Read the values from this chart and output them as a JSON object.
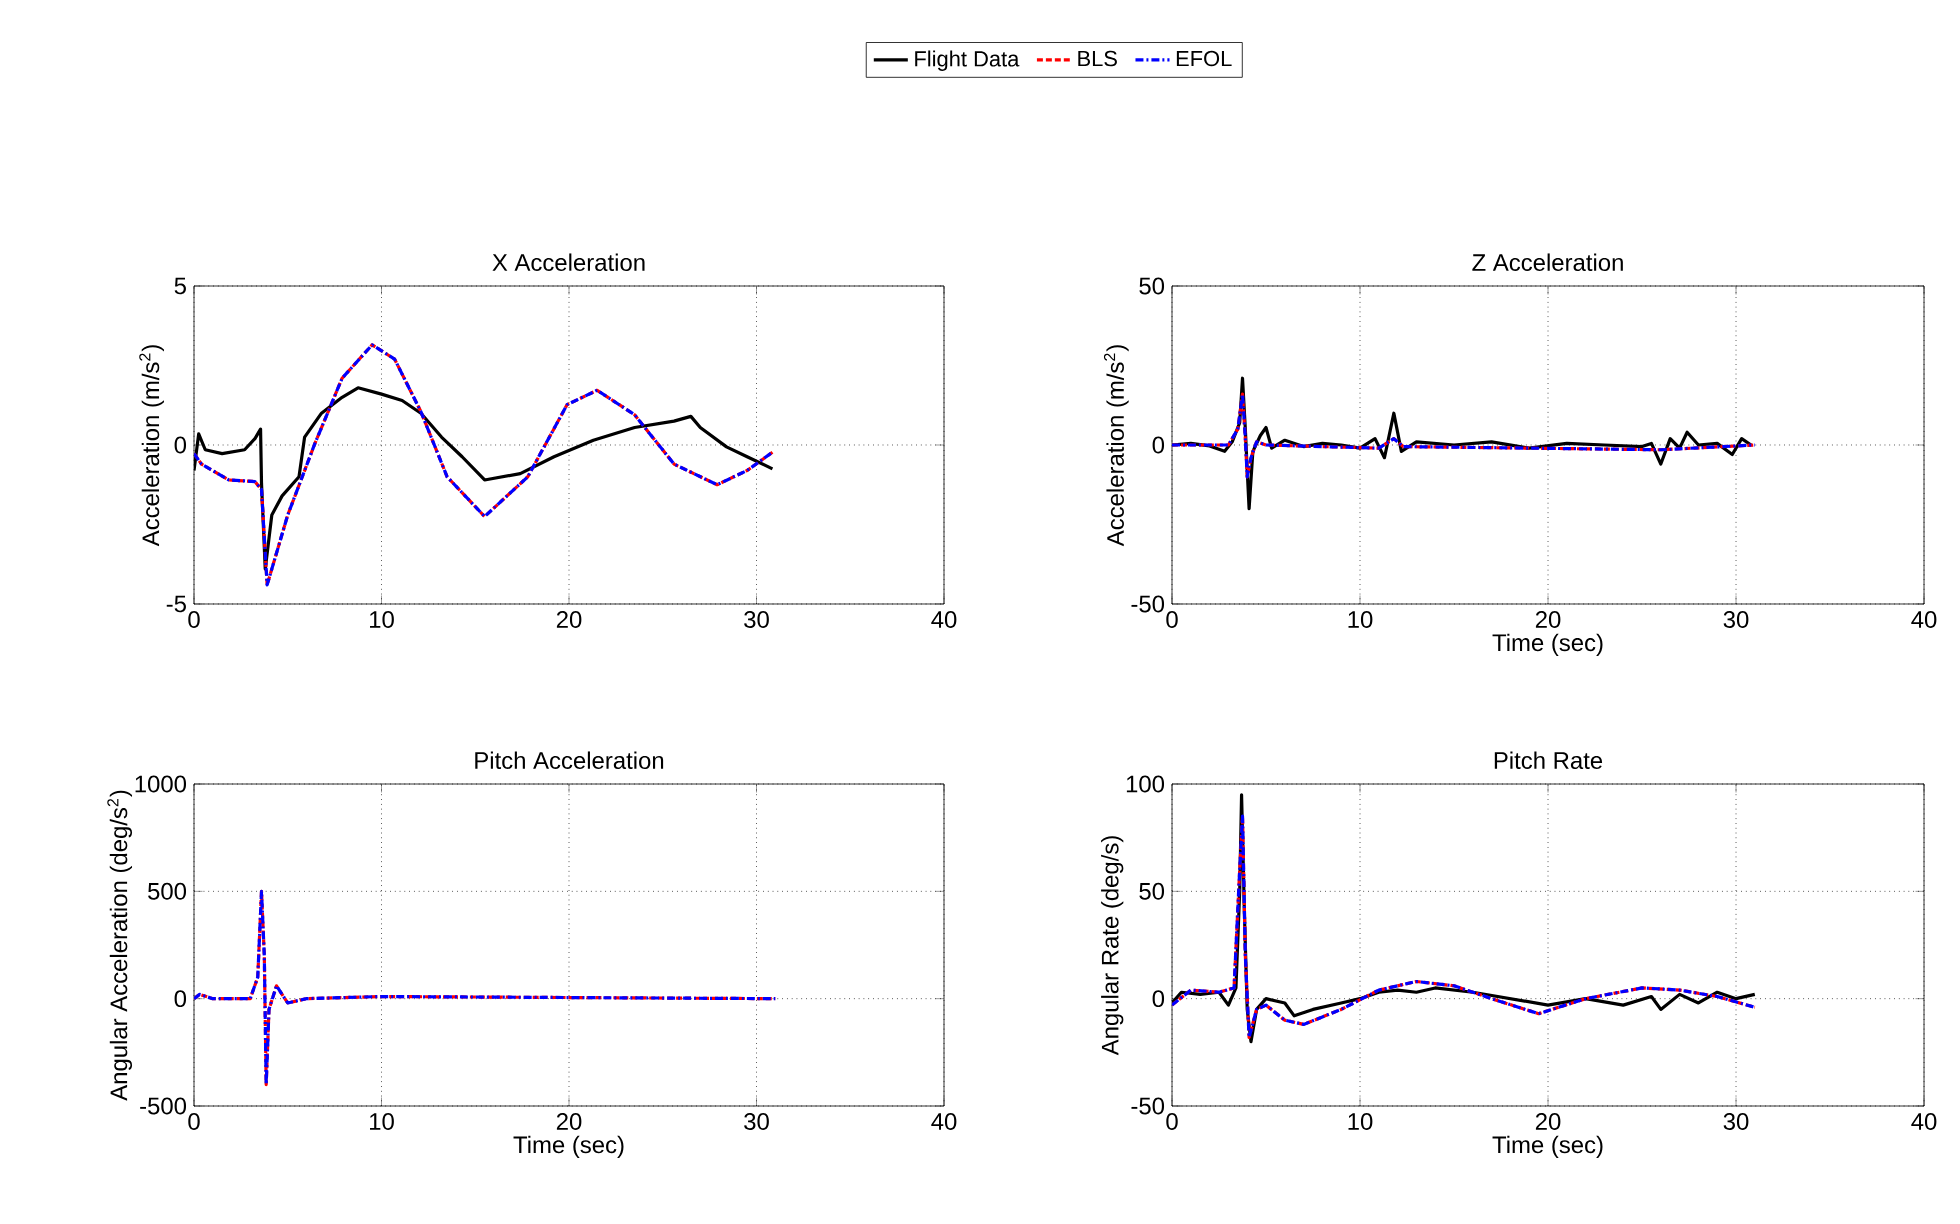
{
  "chart_data": [
    {
      "type": "line",
      "title": "X Acceleration",
      "ylabel": "Acceleration (m/s$^{2}$)",
      "xlim": [
        0,
        40
      ],
      "ylim": [
        -5,
        5
      ],
      "xticks": [
        0,
        10,
        20,
        30,
        40
      ],
      "yticks": [
        -5,
        0,
        5
      ],
      "grid": true,
      "legend": "top",
      "series": [
        {
          "name": "Flight Data",
          "color": "#000000",
          "line_style": "solid",
          "x": [
            0,
            0.25,
            0.6,
            1.5,
            2.7,
            3.25,
            3.55,
            3.6,
            3.8,
            4.15,
            4.7,
            5.6,
            5.9,
            6.8,
            7.9,
            8.75,
            10,
            11.1,
            12.1,
            13.2,
            14.3,
            15.5,
            17.4,
            19.2,
            21.3,
            23.5,
            25.6,
            26.5,
            27,
            28.4,
            29.5,
            30.85
          ],
          "values": [
            -0.8,
            0.35,
            -0.15,
            -0.27,
            -0.15,
            0.2,
            0.5,
            -1.2,
            -3.9,
            -2.2,
            -1.6,
            -1.0,
            0.25,
            1.0,
            1.5,
            1.8,
            1.6,
            1.4,
            1.0,
            0.25,
            -0.37,
            -1.1,
            -0.9,
            -0.37,
            0.15,
            0.55,
            0.75,
            0.9,
            0.55,
            -0.06,
            -0.37,
            -0.75
          ]
        },
        {
          "name": "BLS",
          "color": "#ff0000",
          "line_style": "dashed",
          "x": [
            0,
            0.4,
            1.85,
            3.25,
            3.6,
            3.9,
            5.0,
            6.45,
            7.9,
            9.5,
            10.7,
            12.1,
            13.5,
            15.5,
            17.8,
            19.9,
            21.5,
            23.5,
            25.6,
            27.9,
            29.5,
            30.85
          ],
          "values": [
            -0.27,
            -0.6,
            -1.1,
            -1.15,
            -1.4,
            -4.4,
            -2.2,
            0.05,
            2.1,
            3.15,
            2.7,
            1.05,
            -1.0,
            -2.25,
            -1.0,
            1.27,
            1.72,
            0.95,
            -0.6,
            -1.25,
            -0.8,
            -0.23
          ]
        },
        {
          "name": "EFOL",
          "color": "#0000ff",
          "line_style": "dashdot",
          "x": [
            0,
            0.4,
            1.85,
            3.25,
            3.6,
            3.9,
            5.0,
            6.45,
            7.9,
            9.5,
            10.7,
            12.1,
            13.5,
            15.5,
            17.8,
            19.9,
            21.5,
            23.5,
            25.6,
            27.9,
            29.5,
            30.85
          ],
          "values": [
            -0.27,
            -0.6,
            -1.1,
            -1.15,
            -1.4,
            -4.4,
            -2.2,
            0.05,
            2.1,
            3.15,
            2.7,
            1.05,
            -1.0,
            -2.25,
            -1.0,
            1.27,
            1.72,
            0.95,
            -0.6,
            -1.25,
            -0.8,
            -0.23
          ]
        }
      ]
    },
    {
      "type": "line",
      "title": "Z Acceleration",
      "xlabel": "Time (sec)",
      "ylabel": "Acceleration (m/s$^{2}$)",
      "xlim": [
        0,
        40
      ],
      "ylim": [
        -50,
        50
      ],
      "xticks": [
        0,
        10,
        20,
        30,
        40
      ],
      "yticks": [
        -50,
        0,
        50
      ],
      "grid": true,
      "series": [
        {
          "color": "#000000",
          "line_style": "solid",
          "x": [
            0,
            1,
            2,
            2.8,
            3.2,
            3.6,
            3.75,
            3.9,
            4.0,
            4.1,
            4.3,
            4.7,
            5,
            5.3,
            6,
            7,
            8,
            9,
            10,
            10.8,
            11.3,
            11.8,
            12.2,
            13,
            15,
            17,
            19,
            21,
            23,
            25,
            25.5,
            26,
            26.5,
            27,
            27.4,
            28,
            29,
            29.8,
            30.3,
            30.8
          ],
          "values": [
            0,
            0.5,
            -0.3,
            -2,
            1,
            7,
            21,
            5,
            -8,
            -20,
            -2,
            3,
            5.5,
            -1,
            1.5,
            -0.5,
            0.5,
            0,
            -1,
            2,
            -4,
            10,
            -2,
            1,
            0,
            1,
            -1,
            0.5,
            0,
            -0.5,
            0.5,
            -6,
            2,
            -1,
            4,
            0,
            0.5,
            -3,
            2,
            0
          ]
        },
        {
          "color": "#ff0000",
          "line_style": "dashed",
          "x": [
            0,
            3,
            3.5,
            3.75,
            3.9,
            4.0,
            4.2,
            4.5,
            5,
            11,
            11.8,
            12.3,
            26,
            31
          ],
          "values": [
            0,
            0,
            5,
            16,
            2,
            -10,
            -4,
            1,
            0,
            -1,
            2,
            -0.5,
            -1.5,
            0
          ]
        },
        {
          "color": "#0000ff",
          "line_style": "dashdot",
          "x": [
            0,
            3,
            3.5,
            3.75,
            3.9,
            4.0,
            4.2,
            4.5,
            5,
            11,
            11.8,
            12.3,
            26,
            31
          ],
          "values": [
            0,
            0,
            5,
            16,
            2,
            -10,
            -4,
            1,
            0,
            -1,
            2,
            -0.5,
            -1.5,
            0
          ]
        }
      ]
    },
    {
      "type": "line",
      "title": "Pitch Acceleration",
      "xlabel": "Time (sec)",
      "ylabel": "Angular Acceleration (deg/s$^{2}$)",
      "xlim": [
        0,
        40
      ],
      "ylim": [
        -500,
        1000
      ],
      "xticks": [
        0,
        10,
        20,
        30,
        40
      ],
      "yticks": [
        -500,
        0,
        500,
        1000
      ],
      "grid": true,
      "series": [
        {
          "color": "#ff0000",
          "line_style": "dashed",
          "x": [
            0,
            0.3,
            1,
            3,
            3.4,
            3.6,
            3.75,
            3.85,
            4.0,
            4.4,
            5,
            6,
            10,
            31
          ],
          "values": [
            0,
            20,
            0,
            0,
            100,
            500,
            200,
            -400,
            -50,
            60,
            -20,
            0,
            10,
            0
          ]
        },
        {
          "color": "#0000ff",
          "line_style": "dashdot",
          "x": [
            0,
            0.3,
            1,
            3,
            3.4,
            3.6,
            3.75,
            3.85,
            4.0,
            4.4,
            5,
            6,
            10,
            31
          ],
          "values": [
            0,
            20,
            0,
            0,
            100,
            500,
            200,
            -400,
            -50,
            60,
            -20,
            0,
            10,
            0
          ]
        }
      ]
    },
    {
      "type": "line",
      "title": "Pitch Rate",
      "xlabel": "Time (sec)",
      "ylabel": "Angular Rate (deg/s)",
      "xlim": [
        0,
        40
      ],
      "ylim": [
        -50,
        100
      ],
      "xticks": [
        0,
        10,
        20,
        30,
        40
      ],
      "yticks": [
        -50,
        0,
        50,
        100
      ],
      "grid": true,
      "series": [
        {
          "color": "#000000",
          "line_style": "solid",
          "x": [
            0,
            0.5,
            1.5,
            2.5,
            3,
            3.4,
            3.6,
            3.7,
            3.85,
            4.0,
            4.2,
            4.5,
            5,
            6,
            6.5,
            7.5,
            9,
            10,
            11,
            12,
            13,
            14,
            16,
            18,
            20,
            22,
            24,
            25.5,
            26,
            27,
            28,
            29,
            30,
            31
          ],
          "values": [
            -2,
            3,
            2,
            3,
            -3,
            5,
            50,
            95,
            40,
            -5,
            -20,
            -5,
            0,
            -2,
            -8,
            -5,
            -2,
            0,
            3,
            4,
            3,
            5,
            3,
            0,
            -3,
            0,
            -3,
            1,
            -5,
            2,
            -2,
            3,
            0,
            2
          ]
        },
        {
          "color": "#ff0000",
          "line_style": "dashed",
          "x": [
            0,
            1,
            2.5,
            3.3,
            3.6,
            3.75,
            3.9,
            4.1,
            4.5,
            5,
            6,
            7,
            9,
            11,
            13,
            15,
            17,
            19.5,
            22,
            25,
            27,
            29,
            31
          ],
          "values": [
            -3,
            4,
            3,
            5,
            60,
            85,
            20,
            -18,
            -5,
            -3,
            -10,
            -12,
            -5,
            4,
            8,
            6,
            0,
            -7,
            0,
            5,
            4,
            1,
            -4
          ]
        },
        {
          "color": "#0000ff",
          "line_style": "dashdot",
          "x": [
            0,
            1,
            2.5,
            3.3,
            3.6,
            3.75,
            3.9,
            4.1,
            4.5,
            5,
            6,
            7,
            9,
            11,
            13,
            15,
            17,
            19.5,
            22,
            25,
            27,
            29,
            31
          ],
          "values": [
            -3,
            4,
            3,
            5,
            60,
            85,
            20,
            -18,
            -5,
            -3,
            -10,
            -12,
            -5,
            4,
            8,
            6,
            0,
            -7,
            0,
            5,
            4,
            1,
            -4
          ]
        }
      ]
    }
  ]
}
